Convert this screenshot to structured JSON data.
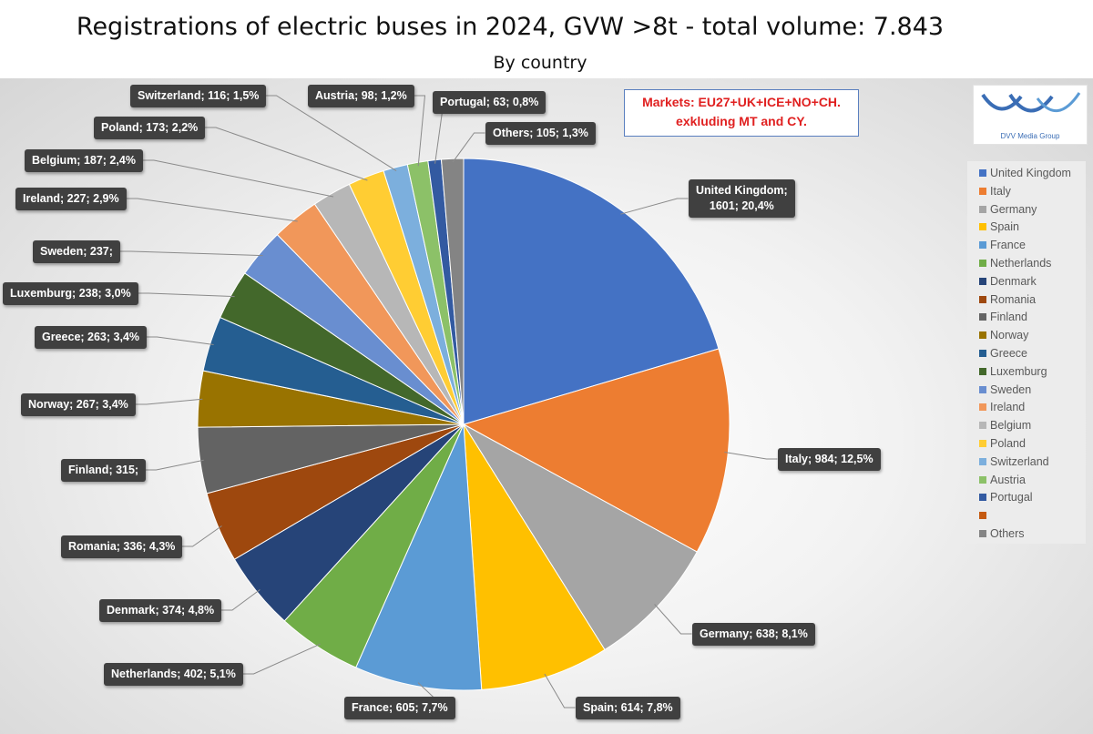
{
  "header": {
    "title": "Registrations of electric buses in 2024, GVW >8t - total volume: 7.843",
    "subtitle": "By country"
  },
  "annotation": {
    "line1": "Markets: EU27+UK+ICE+NO+CH.",
    "line2": "exkluding MT and CY."
  },
  "logo": {
    "text": "DVV Media Group"
  },
  "chart_data": {
    "type": "pie",
    "title": "Registrations of electric buses in 2024, GVW >8t - total volume: 7.843",
    "subtitle": "By country",
    "legend_position": "right",
    "slices": [
      {
        "name": "United Kingdom",
        "value": 1601,
        "label": "United Kingdom;\n1601; 20,4%",
        "color": "#4472c4"
      },
      {
        "name": "Italy",
        "value": 984,
        "label": "Italy; 984; 12,5%",
        "color": "#ed7d31"
      },
      {
        "name": "Germany",
        "value": 638,
        "label": "Germany; 638; 8,1%",
        "color": "#a5a5a5"
      },
      {
        "name": "Spain",
        "value": 614,
        "label": "Spain; 614; 7,8%",
        "color": "#ffc000"
      },
      {
        "name": "France",
        "value": 605,
        "label": "France; 605; 7,7%",
        "color": "#5b9bd5"
      },
      {
        "name": "Netherlands",
        "value": 402,
        "label": "Netherlands; 402; 5,1%",
        "color": "#70ad47"
      },
      {
        "name": "Denmark",
        "value": 374,
        "label": "Denmark; 374; 4,8%",
        "color": "#264478"
      },
      {
        "name": "Romania",
        "value": 336,
        "label": "Romania; 336; 4,3%",
        "color": "#9e480e"
      },
      {
        "name": "Finland",
        "value": 315,
        "label": "Finland; 315;",
        "color": "#636363"
      },
      {
        "name": "Norway",
        "value": 267,
        "label": "Norway; 267; 3,4%",
        "color": "#997300"
      },
      {
        "name": "Greece",
        "value": 263,
        "label": "Greece; 263; 3,4%",
        "color": "#255e91"
      },
      {
        "name": "Luxemburg",
        "value": 238,
        "label": "Luxemburg; 238; 3,0%",
        "color": "#43682b"
      },
      {
        "name": "Sweden",
        "value": 237,
        "label": "Sweden; 237;",
        "color": "#698ed0"
      },
      {
        "name": "Ireland",
        "value": 227,
        "label": "Ireland; 227; 2,9%",
        "color": "#f1975a"
      },
      {
        "name": "Belgium",
        "value": 187,
        "label": "Belgium; 187; 2,4%",
        "color": "#b7b7b7"
      },
      {
        "name": "Poland",
        "value": 173,
        "label": "Poland; 173; 2,2%",
        "color": "#ffcd33"
      },
      {
        "name": "Switzerland",
        "value": 116,
        "label": "Switzerland; 116; 1,5%",
        "color": "#7cafdd"
      },
      {
        "name": "Austria",
        "value": 98,
        "label": "Austria; 98; 1,2%",
        "color": "#8cc168"
      },
      {
        "name": "Portugal",
        "value": 63,
        "label": "Portugal; 63; 0,8%",
        "color": "#335aa1"
      },
      {
        "name": "Others",
        "value": 105,
        "label": "Others; 105; 1,3%",
        "color": "#848484"
      }
    ],
    "legend": [
      {
        "name": "United Kingdom",
        "color": "#4472c4"
      },
      {
        "name": "Italy",
        "color": "#ed7d31"
      },
      {
        "name": "Germany",
        "color": "#a5a5a5"
      },
      {
        "name": "Spain",
        "color": "#ffc000"
      },
      {
        "name": "France",
        "color": "#5b9bd5"
      },
      {
        "name": "Netherlands",
        "color": "#70ad47"
      },
      {
        "name": "Denmark",
        "color": "#264478"
      },
      {
        "name": "Romania",
        "color": "#9e480e"
      },
      {
        "name": "Finland",
        "color": "#636363"
      },
      {
        "name": "Norway",
        "color": "#997300"
      },
      {
        "name": "Greece",
        "color": "#255e91"
      },
      {
        "name": "Luxemburg",
        "color": "#43682b"
      },
      {
        "name": "Sweden",
        "color": "#698ed0"
      },
      {
        "name": "Ireland",
        "color": "#f1975a"
      },
      {
        "name": "Belgium",
        "color": "#b7b7b7"
      },
      {
        "name": "Poland",
        "color": "#ffcd33"
      },
      {
        "name": "Switzerland",
        "color": "#7cafdd"
      },
      {
        "name": "Austria",
        "color": "#8cc168"
      },
      {
        "name": "Portugal",
        "color": "#335aa1"
      },
      {
        "name": "",
        "color": "#c55a11"
      },
      {
        "name": "Others",
        "color": "#848484"
      }
    ]
  }
}
